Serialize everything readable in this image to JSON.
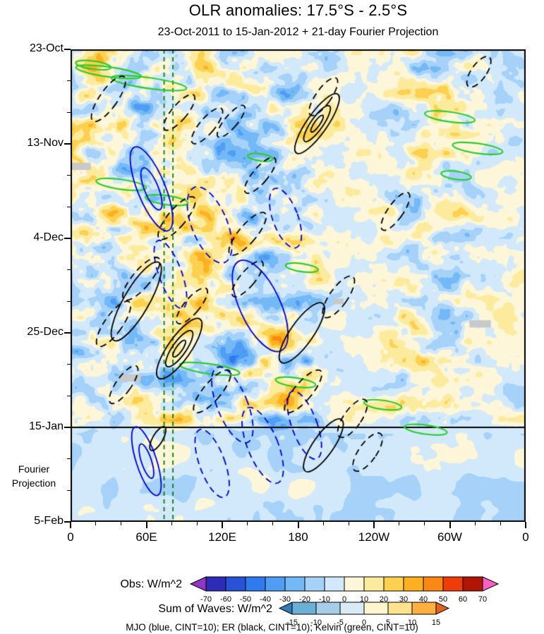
{
  "title": "OLR anomalies: 17.5°S - 2.5°S",
  "subtitle": "23-Oct-2011 to 15-Jan-2012 + 21-day Fourier Projection",
  "chart_data": {
    "type": "heatmap",
    "description": "Hovmoller (time-longitude) diagram of OLR anomalies averaged 17.5S-2.5S, with MJO, ER and Kelvin wave-filtered contour envelopes; observations above the 15-Jan line, 21-day Fourier projection below.",
    "x_axis": {
      "tick_labels": [
        "0",
        "60E",
        "120E",
        "180",
        "120W",
        "60W",
        "0"
      ],
      "tick_values_deg": [
        0,
        60,
        120,
        180,
        240,
        300,
        360
      ],
      "range_deg": [
        0,
        360
      ]
    },
    "y_axis": {
      "tick_labels": [
        "23-Oct",
        "13-Nov",
        "4-Dec",
        "25-Dec",
        "15-Jan",
        "5-Feb"
      ],
      "tick_days": [
        0,
        21,
        42,
        63,
        84,
        105
      ],
      "range_days": [
        0,
        105
      ],
      "projection_label": [
        "Fourier",
        "Projection"
      ]
    },
    "projection_start_day": 84,
    "reference_lines": {
      "longitudes_deg": [
        74,
        81
      ],
      "color": "#0a7a0a",
      "style": "dashed"
    },
    "colorbars": [
      {
        "label": "Obs: W/m^2",
        "ticks": [
          -70,
          -60,
          -50,
          -40,
          -30,
          -20,
          -10,
          0,
          10,
          20,
          30,
          40,
          50,
          60,
          70
        ],
        "colors": [
          "#9136c6",
          "#2c2cb8",
          "#2a52d6",
          "#2f7af0",
          "#4f9df5",
          "#74b9f7",
          "#a6d2fa",
          "#d2e9fc",
          "#fdf6d8",
          "#fcea9d",
          "#fdd04f",
          "#fdb022",
          "#fb8714",
          "#ef3d07",
          "#b01506",
          "#fb5fc5"
        ]
      },
      {
        "label": "Sum of Waves: W/m^2",
        "ticks": [
          -15,
          -10,
          -5,
          0,
          5,
          10,
          15
        ],
        "colors": [
          "#2f7eb8",
          "#6baed6",
          "#a6cee8",
          "#d9eaf5",
          "#fdf6d0",
          "#fee38f",
          "#fdaf3f",
          "#e2641c"
        ]
      }
    ],
    "legend": "MJO (blue, CINT=10); ER (black, CINT=10); Kelvin (green, CINT=10)",
    "wave_contour_interval": 10,
    "wave_colors": {
      "mjo": "#0000cc",
      "er": "#000000",
      "kelvin": "#2ecc2e"
    },
    "field": {
      "seed": 11,
      "obs_amplitude": 58,
      "projection_amplitude": 26,
      "projection_bias": -6,
      "transition_days": 3,
      "amp_envelope": [
        [
          0,
          0.85
        ],
        [
          15,
          1.0
        ],
        [
          185,
          1.0
        ],
        [
          205,
          0.5
        ],
        [
          245,
          0.45
        ],
        [
          262,
          0.8
        ],
        [
          310,
          0.85
        ],
        [
          328,
          0.5
        ],
        [
          360,
          0.45
        ]
      ]
    },
    "missing_data_patches": [
      {
        "lon": 8,
        "day": 26,
        "w_deg": 16,
        "h_day": 1.6
      },
      {
        "lon": 47,
        "day": 73,
        "w_deg": 17,
        "h_day": 1.6
      },
      {
        "lon": 212,
        "day": 56,
        "w_deg": 8,
        "h_day": 1.3
      },
      {
        "lon": 324,
        "day": 61,
        "w_deg": 17,
        "h_day": 1.6
      }
    ],
    "wave_envelopes": [
      {
        "wave": "kelvin",
        "lon": 30,
        "day": 5,
        "rx_deg": 26,
        "ry_day": 1.1,
        "angle": 8,
        "dashed": false,
        "inner": 0
      },
      {
        "wave": "kelvin",
        "lon": 62,
        "day": 7.5,
        "rx_deg": 30,
        "ry_day": 1.2,
        "angle": 8,
        "dashed": false,
        "inner": 0
      },
      {
        "wave": "kelvin",
        "lon": 18,
        "day": 3.5,
        "rx_deg": 14,
        "ry_day": 0.9,
        "angle": 8,
        "dashed": false,
        "inner": 0
      },
      {
        "wave": "kelvin",
        "lon": 300,
        "day": 15,
        "rx_deg": 20,
        "ry_day": 1.1,
        "angle": 8,
        "dashed": false,
        "inner": 0
      },
      {
        "wave": "kelvin",
        "lon": 322,
        "day": 22,
        "rx_deg": 20,
        "ry_day": 1.1,
        "angle": 8,
        "dashed": false,
        "inner": 0
      },
      {
        "wave": "kelvin",
        "lon": 40,
        "day": 30,
        "rx_deg": 20,
        "ry_day": 1.1,
        "angle": 8,
        "dashed": false,
        "inner": 0
      },
      {
        "wave": "kelvin",
        "lon": 76,
        "day": 33.5,
        "rx_deg": 17,
        "ry_day": 1.0,
        "angle": 8,
        "dashed": false,
        "inner": 0
      },
      {
        "wave": "kelvin",
        "lon": 150,
        "day": 24,
        "rx_deg": 10,
        "ry_day": 0.8,
        "angle": 8,
        "dashed": false,
        "inner": 0
      },
      {
        "wave": "kelvin",
        "lon": 305,
        "day": 28,
        "rx_deg": 12,
        "ry_day": 0.9,
        "angle": 8,
        "dashed": false,
        "inner": 0
      },
      {
        "wave": "kelvin",
        "lon": 183,
        "day": 48.5,
        "rx_deg": 13,
        "ry_day": 0.9,
        "angle": 8,
        "dashed": false,
        "inner": 0
      },
      {
        "wave": "kelvin",
        "lon": 110,
        "day": 71,
        "rx_deg": 24,
        "ry_day": 1.1,
        "angle": 8,
        "dashed": false,
        "inner": 0
      },
      {
        "wave": "kelvin",
        "lon": 178,
        "day": 74,
        "rx_deg": 16,
        "ry_day": 1.0,
        "angle": 8,
        "dashed": false,
        "inner": 0
      },
      {
        "wave": "kelvin",
        "lon": 247,
        "day": 79,
        "rx_deg": 15,
        "ry_day": 1.0,
        "angle": 8,
        "dashed": false,
        "inner": 0
      },
      {
        "wave": "kelvin",
        "lon": 281,
        "day": 84.5,
        "rx_deg": 17,
        "ry_day": 1.0,
        "angle": 8,
        "dashed": false,
        "inner": 0
      },
      {
        "wave": "mjo",
        "lon": 64,
        "day": 31,
        "rx_deg": 11,
        "ry_day": 10,
        "angle": -22,
        "dashed": false,
        "inner": 1
      },
      {
        "wave": "mjo",
        "lon": 150,
        "day": 57,
        "rx_deg": 16,
        "ry_day": 11,
        "angle": -25,
        "dashed": false,
        "inner": 0
      },
      {
        "wave": "mjo",
        "lon": 60,
        "day": 91.5,
        "rx_deg": 8,
        "ry_day": 8,
        "angle": -18,
        "dashed": false,
        "inner": 1
      },
      {
        "wave": "mjo",
        "lon": 110,
        "day": 39,
        "rx_deg": 14,
        "ry_day": 9,
        "angle": -22,
        "dashed": true,
        "inner": 0
      },
      {
        "wave": "mjo",
        "lon": 170,
        "day": 37.5,
        "rx_deg": 10,
        "ry_day": 7,
        "angle": -20,
        "dashed": true,
        "inner": 0
      },
      {
        "wave": "mjo",
        "lon": 79,
        "day": 50,
        "rx_deg": 9,
        "ry_day": 8,
        "angle": -20,
        "dashed": true,
        "inner": 0
      },
      {
        "wave": "mjo",
        "lon": 128,
        "day": 79,
        "rx_deg": 12,
        "ry_day": 9,
        "angle": -22,
        "dashed": true,
        "inner": 0
      },
      {
        "wave": "mjo",
        "lon": 152,
        "day": 88,
        "rx_deg": 12,
        "ry_day": 9,
        "angle": -22,
        "dashed": true,
        "inner": 0
      },
      {
        "wave": "mjo",
        "lon": 112,
        "day": 92,
        "rx_deg": 10,
        "ry_day": 8,
        "angle": -20,
        "dashed": true,
        "inner": 0
      },
      {
        "wave": "mjo",
        "lon": 185,
        "day": 83.5,
        "rx_deg": 10,
        "ry_day": 8,
        "angle": -20,
        "dashed": true,
        "inner": 0
      },
      {
        "wave": "er",
        "lon": 195,
        "day": 16.5,
        "rx_deg": 8,
        "ry_day": 8,
        "angle": 35,
        "dashed": false,
        "inner": 2
      },
      {
        "wave": "er",
        "lon": 52,
        "day": 56,
        "rx_deg": 10,
        "ry_day": 10,
        "angle": 30,
        "dashed": false,
        "inner": 0
      },
      {
        "wave": "er",
        "lon": 183,
        "day": 63,
        "rx_deg": 9,
        "ry_day": 8,
        "angle": 35,
        "dashed": false,
        "inner": 0
      },
      {
        "wave": "er",
        "lon": 86,
        "day": 66.5,
        "rx_deg": 9,
        "ry_day": 8,
        "angle": 35,
        "dashed": false,
        "inner": 2
      },
      {
        "wave": "er",
        "lon": 200,
        "day": 88,
        "rx_deg": 8,
        "ry_day": 7,
        "angle": 35,
        "dashed": false,
        "inner": 0
      },
      {
        "wave": "er",
        "lon": 69,
        "day": 86.5,
        "rx_deg": 4,
        "ry_day": 3,
        "angle": 30,
        "dashed": false,
        "inner": 0
      },
      {
        "wave": "er",
        "lon": 30,
        "day": 11,
        "rx_deg": 7,
        "ry_day": 6,
        "angle": 35,
        "dashed": true,
        "inner": 0
      },
      {
        "wave": "er",
        "lon": 86,
        "day": 14,
        "rx_deg": 6,
        "ry_day": 5,
        "angle": 40,
        "dashed": true,
        "inner": 0
      },
      {
        "wave": "er",
        "lon": 108,
        "day": 17,
        "rx_deg": 6,
        "ry_day": 5,
        "angle": 40,
        "dashed": true,
        "inner": 0
      },
      {
        "wave": "er",
        "lon": 127,
        "day": 16,
        "rx_deg": 5,
        "ry_day": 4.5,
        "angle": 40,
        "dashed": true,
        "inner": 0
      },
      {
        "wave": "er",
        "lon": 200,
        "day": 10.5,
        "rx_deg": 6,
        "ry_day": 5,
        "angle": 35,
        "dashed": true,
        "inner": 0
      },
      {
        "wave": "er",
        "lon": 323,
        "day": 5,
        "rx_deg": 6,
        "ry_day": 4,
        "angle": 35,
        "dashed": true,
        "inner": 0
      },
      {
        "wave": "er",
        "lon": 84,
        "day": 37.5,
        "rx_deg": 7,
        "ry_day": 6,
        "angle": 40,
        "dashed": true,
        "inner": 0
      },
      {
        "wave": "er",
        "lon": 140,
        "day": 41,
        "rx_deg": 7,
        "ry_day": 6,
        "angle": 40,
        "dashed": true,
        "inner": 0
      },
      {
        "wave": "er",
        "lon": 150,
        "day": 28,
        "rx_deg": 6,
        "ry_day": 5,
        "angle": 40,
        "dashed": true,
        "inner": 0
      },
      {
        "wave": "er",
        "lon": 56,
        "day": 51,
        "rx_deg": 7,
        "ry_day": 6,
        "angle": 40,
        "dashed": true,
        "inner": 0
      },
      {
        "wave": "er",
        "lon": 34,
        "day": 61,
        "rx_deg": 7,
        "ry_day": 6,
        "angle": 35,
        "dashed": true,
        "inner": 0
      },
      {
        "wave": "er",
        "lon": 140,
        "day": 51,
        "rx_deg": 6,
        "ry_day": 5,
        "angle": 40,
        "dashed": true,
        "inner": 0
      },
      {
        "wave": "er",
        "lon": 212,
        "day": 55,
        "rx_deg": 7,
        "ry_day": 5.5,
        "angle": 35,
        "dashed": true,
        "inner": 0
      },
      {
        "wave": "er",
        "lon": 96,
        "day": 57,
        "rx_deg": 6,
        "ry_day": 5,
        "angle": 40,
        "dashed": true,
        "inner": 0
      },
      {
        "wave": "er",
        "lon": 184,
        "day": 76,
        "rx_deg": 7,
        "ry_day": 6,
        "angle": 40,
        "dashed": true,
        "inner": 0
      },
      {
        "wave": "er",
        "lon": 112,
        "day": 76,
        "rx_deg": 7,
        "ry_day": 6,
        "angle": 40,
        "dashed": true,
        "inner": 0
      },
      {
        "wave": "er",
        "lon": 42,
        "day": 74.5,
        "rx_deg": 6,
        "ry_day": 5,
        "angle": 35,
        "dashed": true,
        "inner": 0
      },
      {
        "wave": "er",
        "lon": 223,
        "day": 82,
        "rx_deg": 7,
        "ry_day": 5,
        "angle": 35,
        "dashed": true,
        "inner": 0
      },
      {
        "wave": "er",
        "lon": 235,
        "day": 89.5,
        "rx_deg": 7,
        "ry_day": 5,
        "angle": 35,
        "dashed": true,
        "inner": 0
      },
      {
        "wave": "er",
        "lon": 257,
        "day": 36,
        "rx_deg": 6,
        "ry_day": 5,
        "angle": 35,
        "dashed": true,
        "inner": 0
      }
    ]
  }
}
